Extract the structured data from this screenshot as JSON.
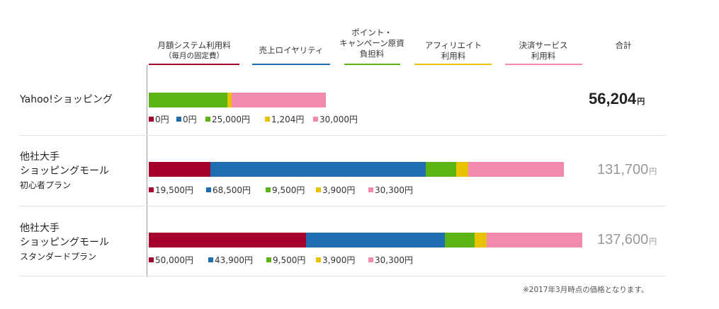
{
  "headers": [
    {
      "label": "月額システム利用料",
      "sub": "（毎月の固定費）",
      "color": "#a5002b"
    },
    {
      "label": "売上ロイヤリティ",
      "sub": "",
      "color": "#1f6fb0"
    },
    {
      "label": "ポイント・",
      "sub": "キャンペーン原資",
      "sub2": "負担料",
      "color": "#5bb314"
    },
    {
      "label": "アフィリエイト",
      "sub": "利用料",
      "color": "#e6c200"
    },
    {
      "label": "決済サービス",
      "sub": "利用料",
      "color": "#f28aad"
    },
    {
      "label": "合計",
      "sub": "",
      "color": ""
    }
  ],
  "rows": [
    {
      "name": "Yahoo!ショッピング",
      "name2": "",
      "name3": "",
      "total": "56,204",
      "yen": "円"
    },
    {
      "name": "他社大手",
      "name2": "ショッピングモール",
      "name3": "初心者プラン",
      "total": "131,700",
      "yen": "円"
    },
    {
      "name": "他社大手",
      "name2": "ショッピングモール",
      "name3": "スタンダードプラン",
      "total": "137,600",
      "yen": "円"
    }
  ],
  "chart_data": {
    "type": "bar",
    "orientation": "horizontal",
    "stacked": true,
    "categories": [
      "Yahoo!ショッピング",
      "他社大手 ショッピングモール 初心者プラン",
      "他社大手 ショッピングモール スタンダードプラン"
    ],
    "series": [
      {
        "name": "月額システム利用料（毎月の固定費）",
        "color": "#a5002b",
        "values": [
          0,
          19500,
          50000
        ],
        "labels": [
          "0円",
          "19,500円",
          "50,000円"
        ]
      },
      {
        "name": "売上ロイヤリティ",
        "color": "#1f6fb0",
        "values": [
          0,
          68500,
          43900
        ],
        "labels": [
          "0円",
          "68,500円",
          "43,900円"
        ]
      },
      {
        "name": "ポイント・キャンペーン原資負担料",
        "color": "#5bb314",
        "values": [
          25000,
          9500,
          9500
        ],
        "labels": [
          "25,000円",
          "9,500円",
          "9,500円"
        ]
      },
      {
        "name": "アフィリエイト利用料",
        "color": "#e6c200",
        "values": [
          1204,
          3900,
          3900
        ],
        "labels": [
          "1,204円",
          "3,900円",
          "3,900円"
        ]
      },
      {
        "name": "決済サービス利用料",
        "color": "#f28aad",
        "values": [
          30000,
          30300,
          30300
        ],
        "labels": [
          "30,000円",
          "30,300円",
          "30,300円"
        ]
      }
    ],
    "totals": [
      56204,
      131700,
      137600
    ],
    "total_colors": [
      "#222222",
      "#999999",
      "#999999"
    ]
  },
  "note": "※2017年3月時点の価格となります。"
}
